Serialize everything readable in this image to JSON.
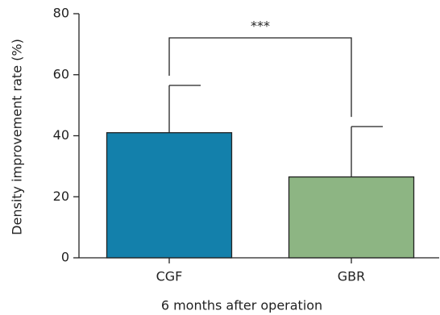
{
  "chart_data": {
    "type": "bar",
    "categories": [
      "CGF",
      "GBR"
    ],
    "values": [
      41,
      26.5
    ],
    "errors": [
      15.5,
      16.5
    ],
    "colors": [
      "#1380ab",
      "#8db583"
    ],
    "ylim": [
      0,
      80
    ],
    "yticks": [
      0,
      20,
      40,
      60,
      80
    ],
    "ylabel": "Density improvement rate (%)",
    "xlabel": "6 months after operation",
    "annotation": "***"
  }
}
